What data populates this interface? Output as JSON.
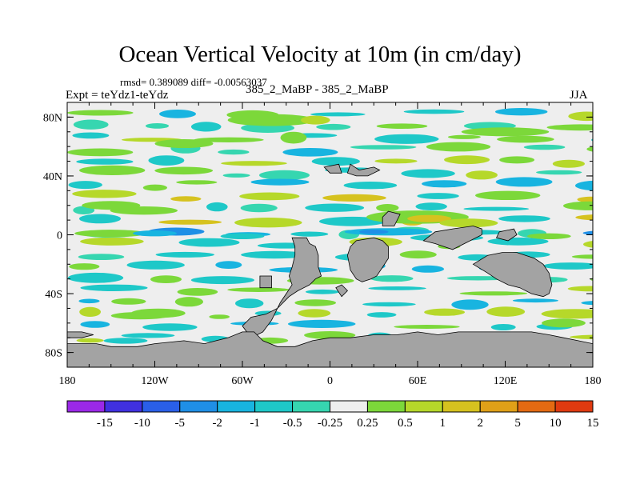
{
  "chart": {
    "title": "Ocean Vertical Velocity at 10m (in cm/day)",
    "stats": "rmsd= 0.389089 diff= -0.00563037",
    "subtitle": "385_2_MaBP - 385_2_MaBP",
    "experiment": "Expt = teYdz1-teYdz",
    "season": "JJA"
  },
  "chart_data": {
    "type": "heatmap",
    "title": "Ocean Vertical Velocity at 10m (in cm/day)",
    "variable": "vertical velocity difference",
    "units": "cm/day",
    "xlabel": "",
    "ylabel": "",
    "x_ticks": [
      "180",
      "120W",
      "60W",
      "0",
      "60E",
      "120E",
      "180"
    ],
    "x_tick_values": [
      -180,
      -120,
      -60,
      0,
      60,
      120,
      180
    ],
    "y_ticks": [
      "80N",
      "40N",
      "0",
      "40S",
      "80S"
    ],
    "y_tick_values": [
      80,
      40,
      0,
      -40,
      -80
    ],
    "xlim": [
      -180,
      180
    ],
    "ylim": [
      -90,
      90
    ],
    "contour_levels": [
      "-15",
      "-10",
      "-5",
      "-2",
      "-1",
      "-0.5",
      "-0.25",
      "0.25",
      "0.5",
      "1",
      "2",
      "5",
      "10",
      "15"
    ],
    "colorbar_colors": [
      "#9b28e8",
      "#4030e0",
      "#2a5fe8",
      "#1f8fe6",
      "#18b4e0",
      "#1ec8c8",
      "#36d6b0",
      "#eeeeee",
      "#7cd83a",
      "#b6d82a",
      "#d6c21f",
      "#e0a018",
      "#e46a12",
      "#e03a10"
    ],
    "land_color": "#a3a3a3",
    "zero_band_color": "#eeeeee"
  }
}
